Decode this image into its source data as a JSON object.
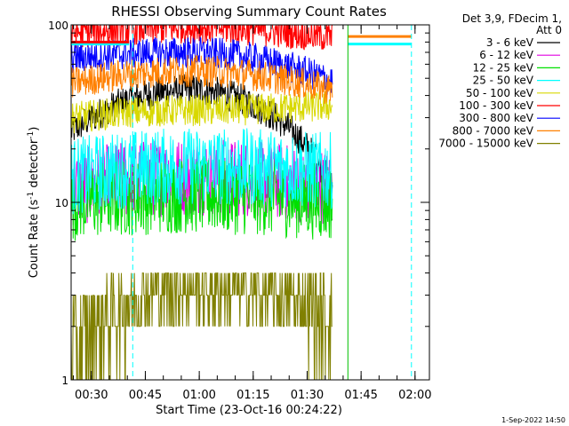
{
  "chart_data": {
    "type": "line",
    "title": "RHESSI Observing Summary Count Rates",
    "xlabel": "Start Time (23-Oct-16 00:24:22)",
    "ylabel_main": "Count Rate (s",
    "ylabel_sup1": "-1",
    "ylabel_mid": " detector",
    "ylabel_sup2": "-1",
    "ylabel_end": ")",
    "yscale": "log",
    "ylim": [
      1,
      100
    ],
    "xlim": [
      "00:24:22",
      "02:04:00"
    ],
    "xticks": [
      "00:30",
      "00:45",
      "01:00",
      "01:15",
      "01:30",
      "01:45",
      "02:00"
    ],
    "yticks": [
      "1",
      "10",
      "100"
    ],
    "info": [
      "Det 3,9, FDecim 1,",
      "Att 0"
    ],
    "legend_position": "top-right, outside plot",
    "series": [
      {
        "name": "3 - 6 keV",
        "color": "#000000",
        "level_start": 25,
        "level_peak": 43,
        "level_end": 12,
        "data_end": "01:37"
      },
      {
        "name": "6 - 12 keV",
        "color": "#e000e0",
        "level_start": 12,
        "level_peak": 14,
        "level_end": 12,
        "data_end": "01:37"
      },
      {
        "name": "12 - 25 keV",
        "color": "#00e000",
        "level_start": 10,
        "level_peak": 11,
        "level_end": 10,
        "data_end": "01:37"
      },
      {
        "name": "25 - 50 keV",
        "color": "#00ffff",
        "level_start": 14,
        "level_peak": 16,
        "level_end": 15,
        "data_end": "01:37"
      },
      {
        "name": "50 - 100 keV",
        "color": "#d8d800",
        "level_start": 30,
        "level_peak": 33,
        "level_end": 35,
        "data_end": "01:37"
      },
      {
        "name": "100 - 300 keV",
        "color": "#ff0000",
        "level_start": 90,
        "level_peak": 96,
        "level_end": 85,
        "data_end": "01:37"
      },
      {
        "name": "300 - 800 keV",
        "color": "#0000ff",
        "level_start": 65,
        "level_peak": 70,
        "level_end": 48,
        "data_end": "01:37"
      },
      {
        "name": "800 - 7000 keV",
        "color": "#ff8000",
        "level_start": 47,
        "level_peak": 55,
        "level_end": 43,
        "data_end": "01:37"
      },
      {
        "name": "7000 - 15000 keV",
        "color": "#808000",
        "level_start": 1.5,
        "level_peak": 3.3,
        "level_end": 2.5,
        "data_end": "01:37"
      }
    ],
    "gap_markers": {
      "cyan_dashed": [
        "00:24:22",
        "00:41:30",
        "01:59:00"
      ],
      "green_solid": [
        "00:24:22",
        "01:41:20"
      ]
    },
    "stub_segments": [
      {
        "color": "#00ffff",
        "value": 78,
        "from": "00:24:22",
        "to": "00:40:30"
      },
      {
        "color": "#ff0000",
        "value": 80,
        "from": "00:24:22",
        "to": "00:40:30"
      },
      {
        "color": "#00ffff",
        "value": 78,
        "from": "01:41:20",
        "to": "01:59:00"
      },
      {
        "color": "#ff8000",
        "value": 86,
        "from": "01:41:20",
        "to": "01:59:00"
      }
    ]
  },
  "footer_date": "1-Sep-2022 14:50"
}
